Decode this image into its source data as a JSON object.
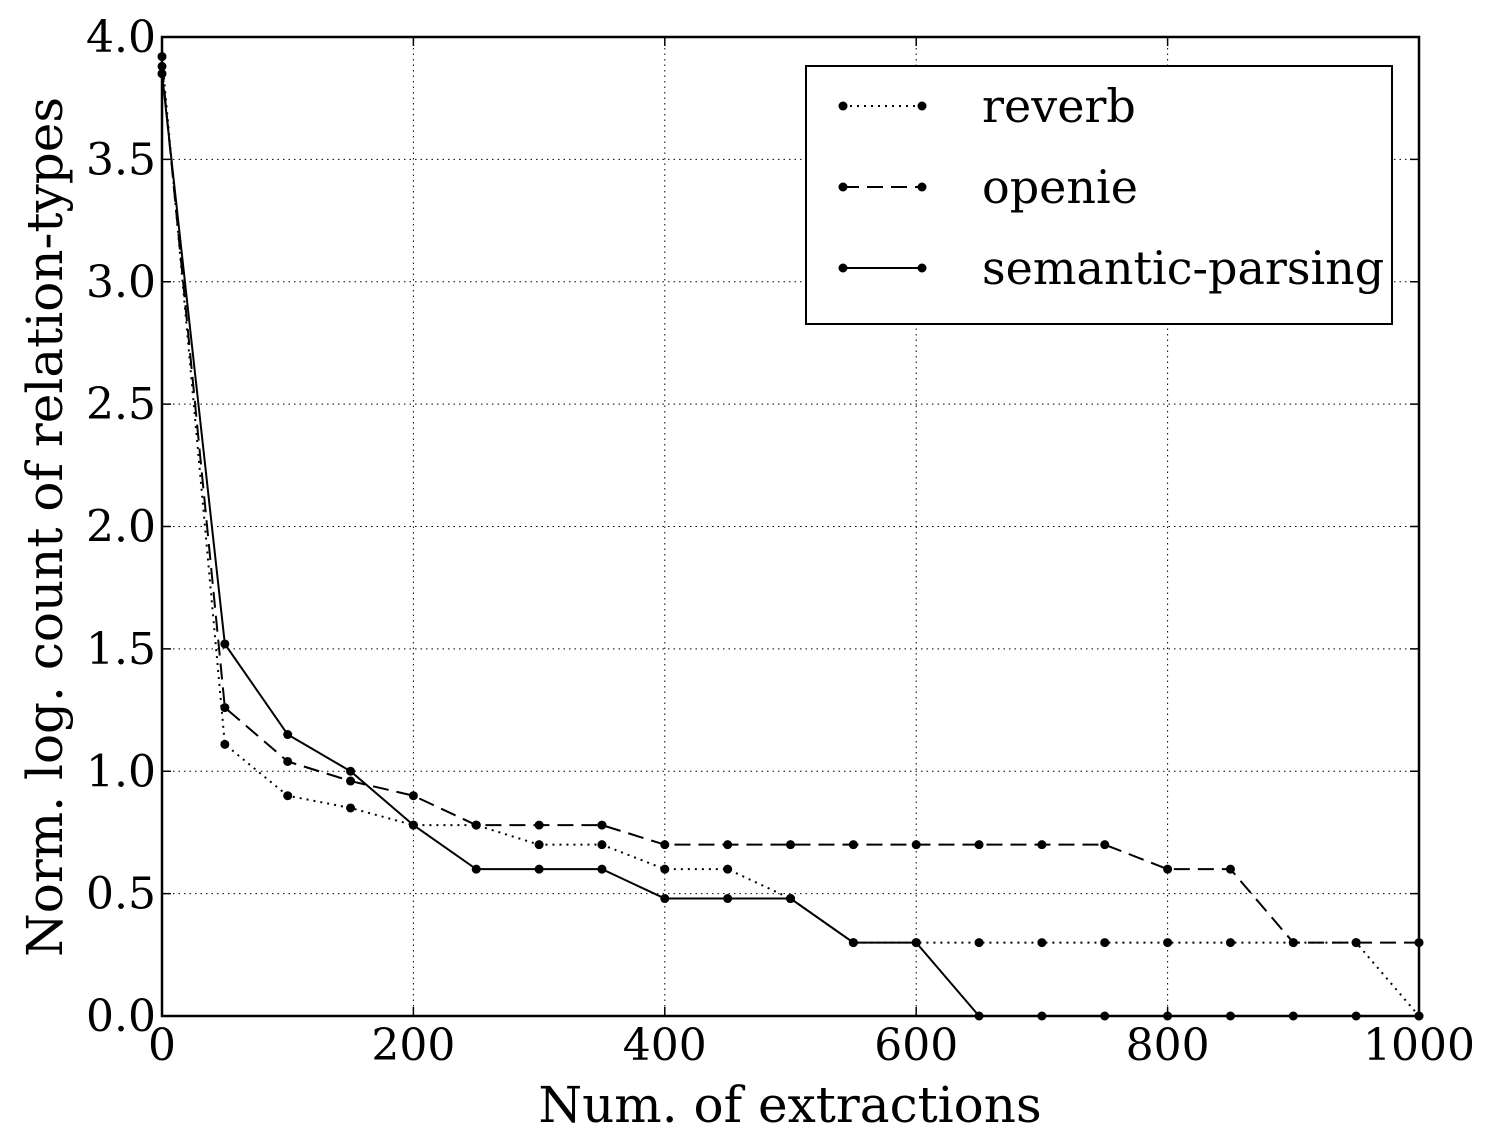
{
  "chart_data": {
    "type": "line",
    "title": "",
    "xlabel": "Num. of extractions",
    "ylabel": "Norm. log. count of relation-types",
    "xlim": [
      0,
      1000
    ],
    "ylim": [
      0.0,
      4.0
    ],
    "x_ticks": [
      "0",
      "200",
      "400",
      "600",
      "800",
      "1000"
    ],
    "y_ticks": [
      "0.0",
      "0.5",
      "1.0",
      "1.5",
      "2.0",
      "2.5",
      "3.0",
      "3.5",
      "4.0"
    ],
    "grid": true,
    "legend_position": "top-right",
    "x": [
      0,
      50,
      100,
      150,
      200,
      250,
      300,
      350,
      400,
      450,
      500,
      550,
      600,
      650,
      700,
      750,
      800,
      850,
      900,
      950,
      1000
    ],
    "series": [
      {
        "name": "reverb",
        "style": "dotted",
        "values": [
          3.92,
          1.11,
          0.9,
          0.85,
          0.78,
          0.78,
          0.7,
          0.7,
          0.6,
          0.6,
          0.48,
          0.3,
          0.3,
          0.3,
          0.3,
          0.3,
          0.3,
          0.3,
          0.3,
          0.3,
          0.0
        ]
      },
      {
        "name": "openie",
        "style": "dashed",
        "values": [
          3.88,
          1.26,
          1.04,
          0.96,
          0.9,
          0.78,
          0.78,
          0.78,
          0.7,
          0.7,
          0.7,
          0.7,
          0.7,
          0.7,
          0.7,
          0.7,
          0.6,
          0.6,
          0.3,
          0.3,
          0.3
        ]
      },
      {
        "name": "semantic-parsing",
        "style": "solid",
        "values": [
          3.85,
          1.52,
          1.15,
          1.0,
          0.78,
          0.6,
          0.6,
          0.6,
          0.48,
          0.48,
          0.48,
          0.3,
          0.3,
          0.0,
          0.0,
          0.0,
          0.0,
          0.0,
          0.0,
          0.0,
          0.0
        ]
      }
    ]
  }
}
